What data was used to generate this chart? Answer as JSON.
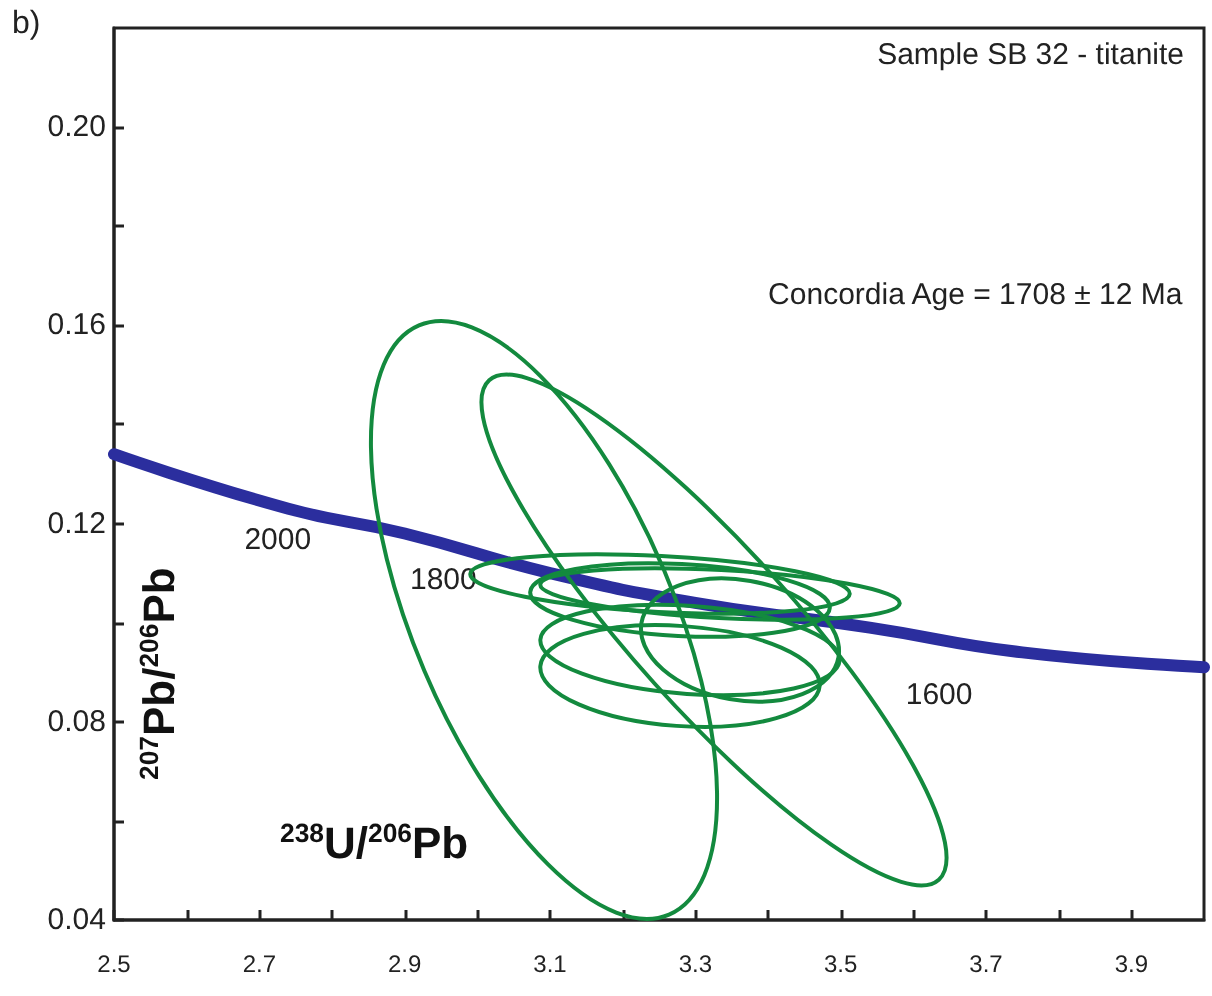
{
  "chart_data": {
    "type": "line",
    "title": "b)",
    "xlabel": "$^{238}$U/$^{206}$Pb",
    "ylabel": "$^{207}$Pb/$^{206}$Pb",
    "xlim": [
      2.5,
      4.0
    ],
    "xticks": [
      2.5,
      {
        "value": 2.6,
        "label": null
      },
      2.7,
      {
        "value": 2.8,
        "label": null
      },
      2.9,
      {
        "value": 3.0,
        "label": null
      },
      3.1,
      {
        "value": 3.2,
        "label": null
      },
      3.3,
      {
        "value": 3.4,
        "label": null
      },
      3.5,
      {
        "value": 3.6,
        "label": null
      },
      3.7,
      {
        "value": 3.8,
        "label": null
      },
      3.9
    ],
    "ylim": [
      0.04,
      0.22
    ],
    "yticks": [
      {
        "value": 0.04,
        "label": "0.04"
      },
      {
        "value": 0.06,
        "label": null
      },
      {
        "value": 0.08,
        "label": "0.08"
      },
      {
        "value": 0.1,
        "label": null
      },
      {
        "value": 0.12,
        "label": "0.12"
      },
      {
        "value": 0.14,
        "label": null
      },
      {
        "value": 0.16,
        "label": "0.16"
      },
      {
        "value": 0.18,
        "label": null
      },
      {
        "value": 0.2,
        "label": "0.20"
      }
    ],
    "grid": false,
    "marker": "none",
    "line_style": "solid",
    "annotations": [
      "Sample SB 32 - titanite",
      "Concordia Age = 1708 ± 12 Ma",
      {
        "text": "2000",
        "x": 2.74,
        "y": 0.123
      },
      {
        "text": "1800",
        "x": 3.1,
        "y": 0.11
      },
      {
        "text": "1600",
        "x": 3.54,
        "y": 0.099
      }
    ],
    "series": [
      {
        "color": "#2b2e9e",
        "x": [
          2.5,
          2.74,
          2.9,
          3.1,
          3.3,
          3.54,
          3.75,
          4.0
        ],
        "values": [
          0.134,
          0.123,
          0.118,
          0.11,
          0.104,
          0.099,
          0.094,
          0.091
        ]
      }
    ]
  }
}
